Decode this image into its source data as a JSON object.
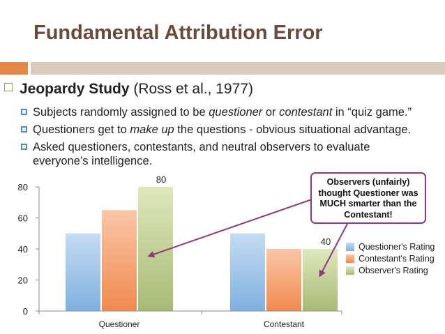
{
  "slide": {
    "title": "Fundamental Attribution Error",
    "bullet1": {
      "bold": "Jeopardy Study",
      "rest": " (Ross et al., 1977)"
    },
    "sub1": {
      "pre": "Subjects randomly assigned to be ",
      "em1": "questioner",
      "mid": " or ",
      "em2": "contestant",
      "post": " in “quiz game.”"
    },
    "sub2": {
      "pre": "Questioners get to ",
      "em": "make up",
      "post": " the questions - obvious situational advantage."
    },
    "sub3": {
      "line1": "Asked questioners, contestants, and neutral observers to evaluate",
      "line2": "everyone’s intelligence."
    },
    "callout": [
      "Observers (unfairly)",
      "thought Questioner was",
      "MUCH smarter than the",
      "Contestant!"
    ]
  },
  "colors": {
    "title": "#6a4a3a",
    "accent": "#e8874a",
    "callout_border": "#8c3a7e"
  },
  "chart_data": {
    "type": "bar",
    "categories": [
      "Questioner",
      "Contestant"
    ],
    "series": [
      {
        "name": "Questioner's Rating",
        "values": [
          50,
          50
        ],
        "color_top": "#c6dcf2",
        "color_bottom": "#7fb0df"
      },
      {
        "name": "Contestant's Rating",
        "values": [
          65,
          40
        ],
        "color_top": "#fbc7a8",
        "color_bottom": "#ef8a4f"
      },
      {
        "name": "Observer's Rating",
        "values": [
          80,
          40
        ],
        "color_top": "#dfe8bd",
        "color_bottom": "#a7ba74"
      }
    ],
    "data_labels": [
      {
        "category": 0,
        "series": 2,
        "text": "80"
      },
      {
        "category": 1,
        "series": 2,
        "text": "40"
      }
    ],
    "ylim": [
      0,
      80
    ],
    "yticks": [
      0,
      20,
      40,
      60,
      80
    ],
    "legend": "right",
    "grid": false
  }
}
